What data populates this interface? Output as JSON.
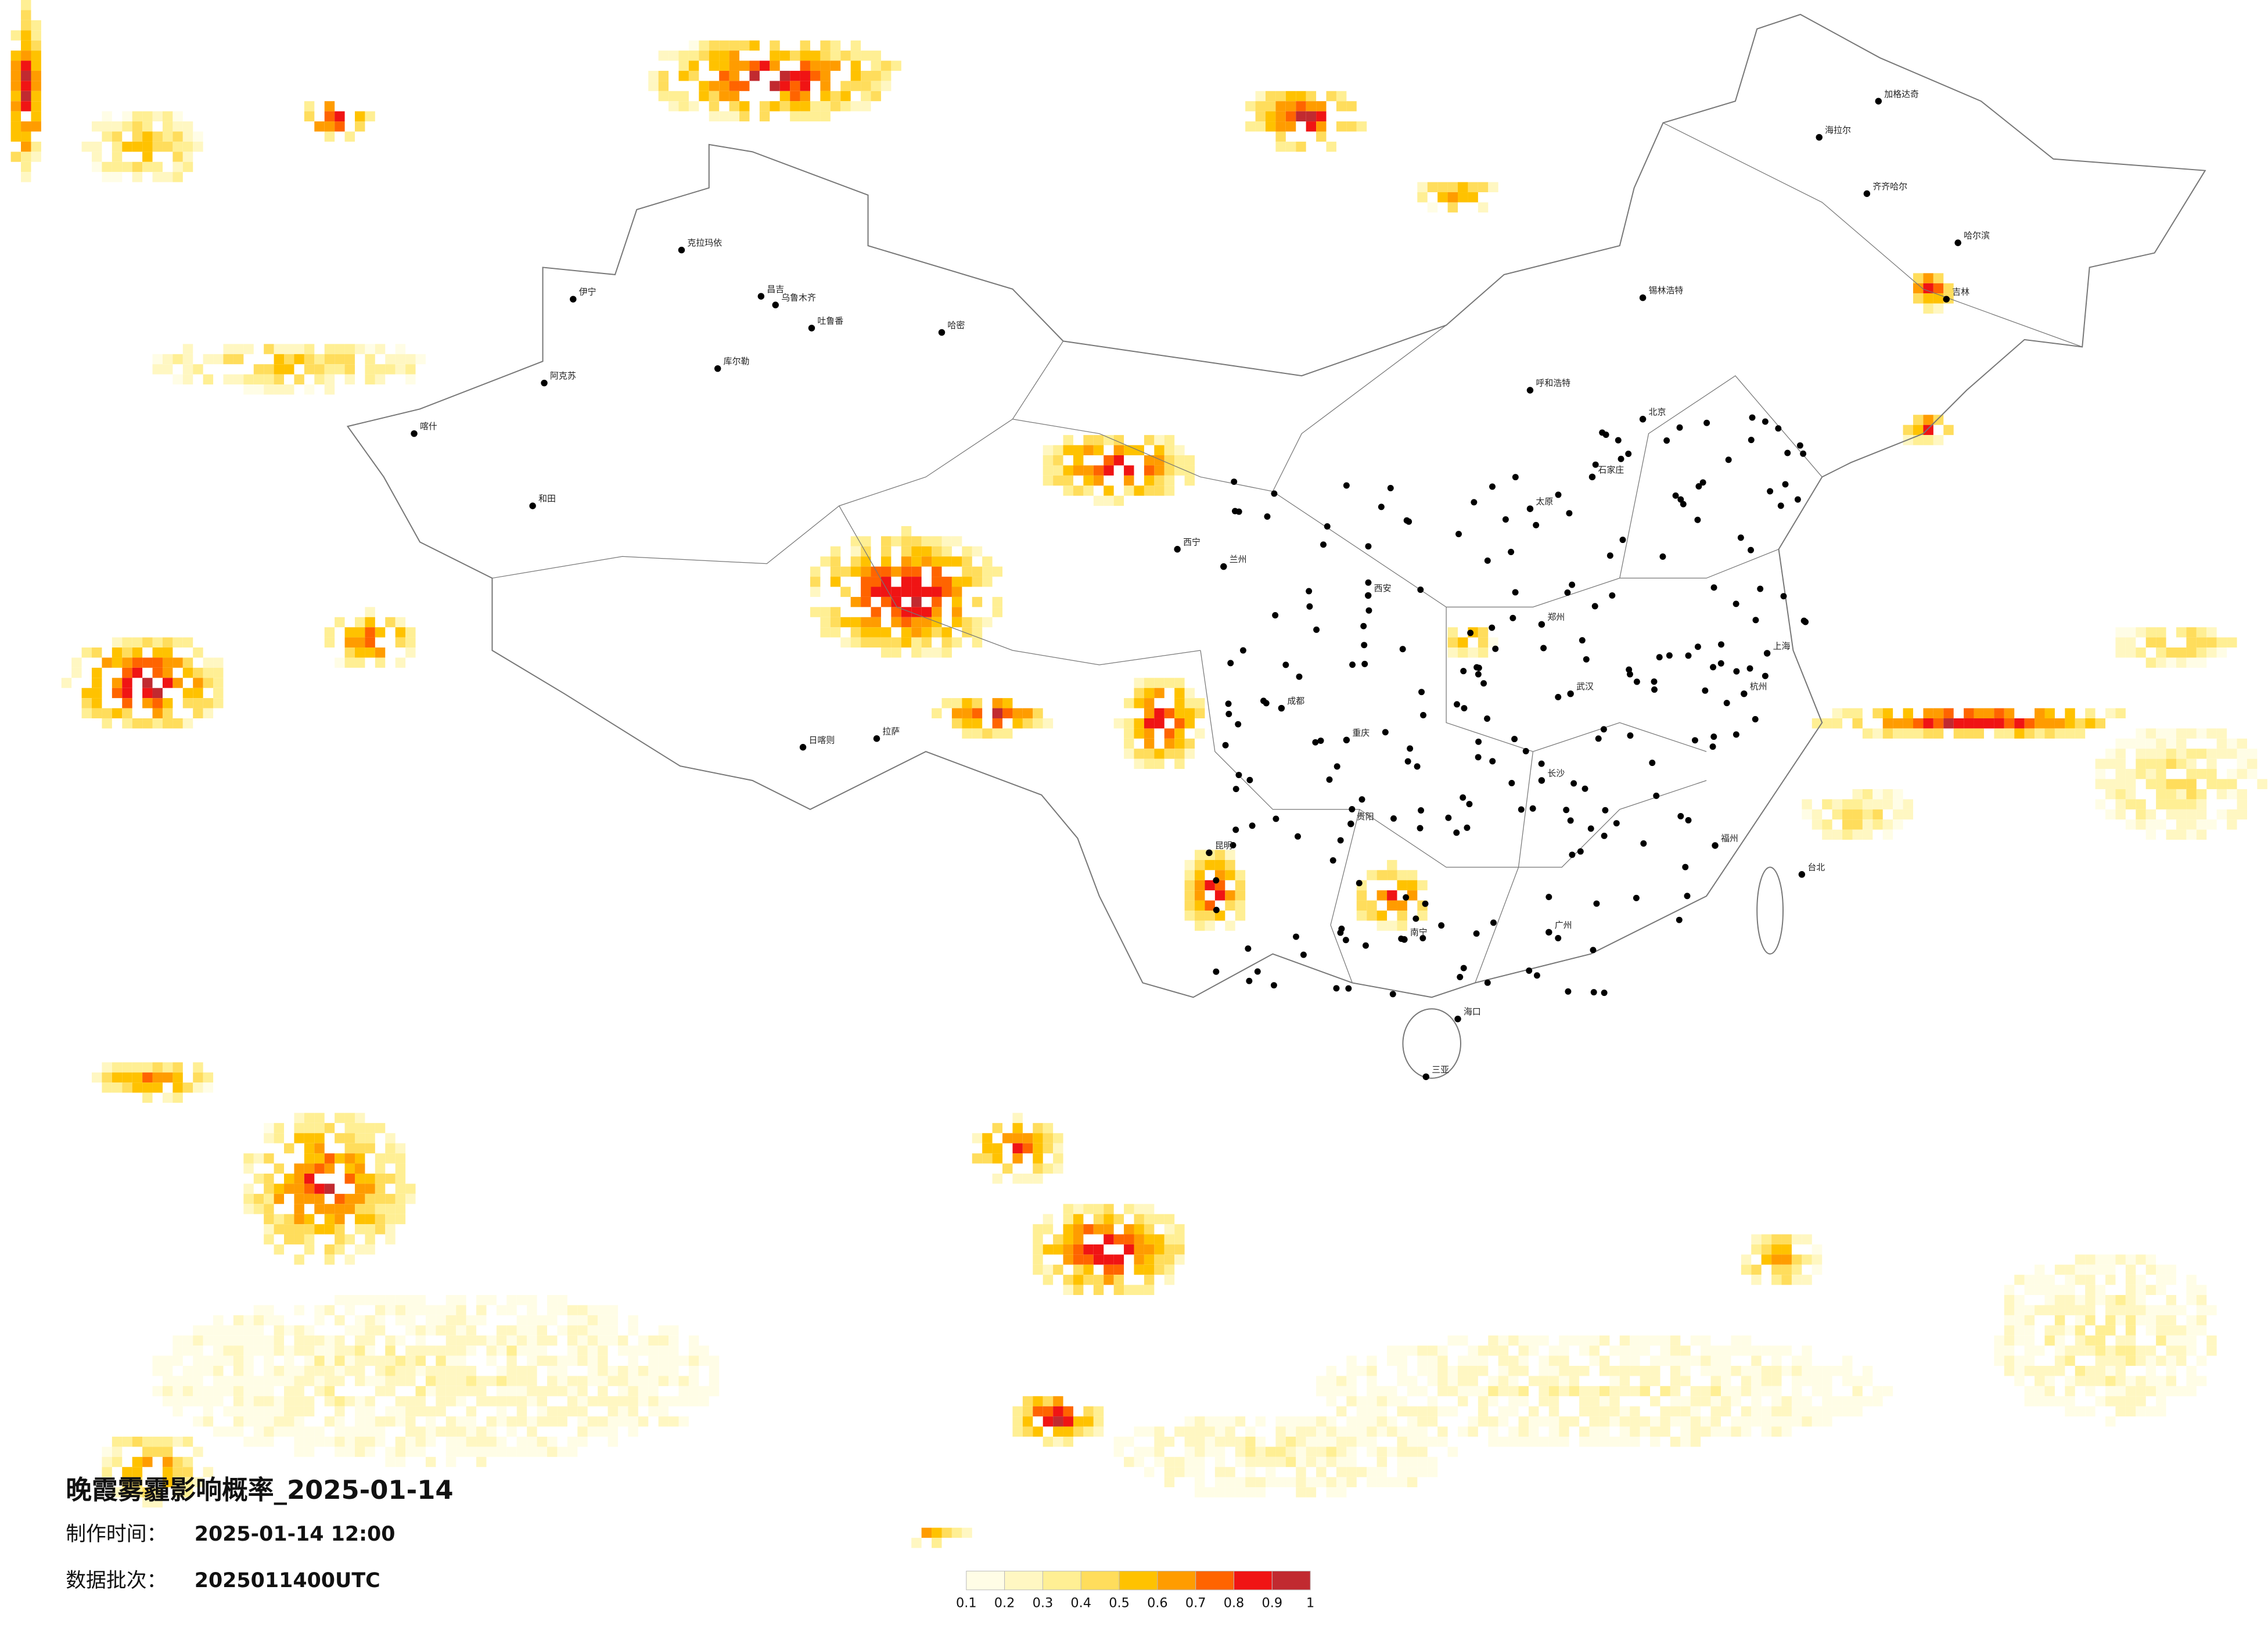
{
  "title": "晚霞雾霾影响概率_2025-01-14",
  "made_label": "制作时间：",
  "made_time": "2025-01-14 12:00",
  "batch_label": "数据批次：",
  "batch": "2025011400UTC",
  "colorbar": {
    "ticks": [
      0.1,
      0.2,
      0.3,
      0.4,
      0.5,
      0.6,
      0.7,
      0.8,
      0.9,
      1
    ],
    "colors": [
      "#fffde6",
      "#fff7c2",
      "#ffef94",
      "#ffdd5c",
      "#ffc200",
      "#ff9c00",
      "#ff6400",
      "#f01414",
      "#c12a30"
    ]
  },
  "cities": [
    "克拉玛依",
    "伊宁",
    "昌吉",
    "乌鲁木齐",
    "吐鲁番",
    "哈密",
    "库尔勒",
    "阿克苏",
    "喀什",
    "和田",
    "日喀则",
    "拉萨",
    "海拉尔",
    "加格达奇",
    "齐齐哈尔",
    "哈尔滨",
    "吉林",
    "锡林浩特",
    "呼和浩特",
    "北京",
    "石家庄",
    "太原",
    "西宁",
    "兰州",
    "西安",
    "郑州",
    "武汉",
    "上海",
    "杭州",
    "长沙",
    "成都",
    "重庆",
    "贵阳",
    "昆明",
    "南宁",
    "广州",
    "海口",
    "三亚",
    "台北",
    "福州"
  ]
}
